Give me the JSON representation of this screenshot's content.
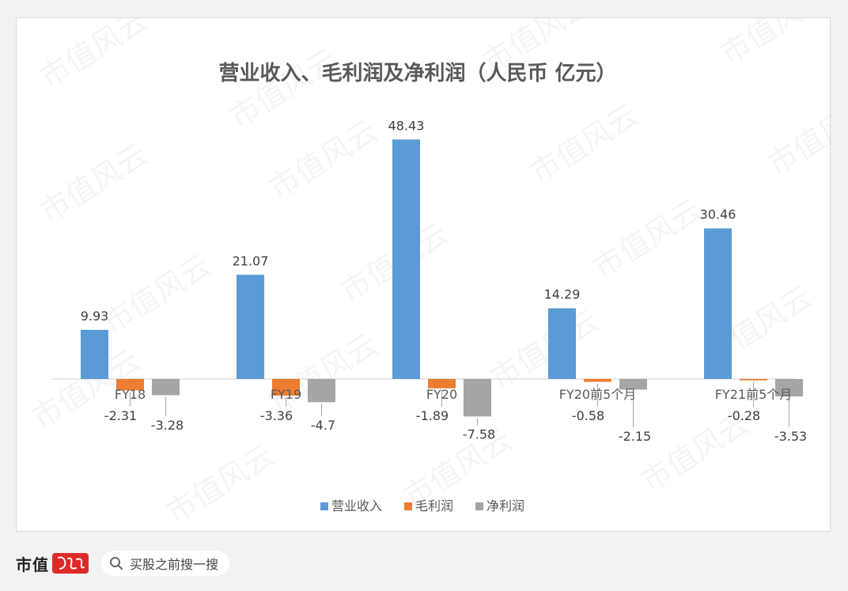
{
  "chart_data": {
    "type": "bar",
    "title": "营业收入、毛利润及净利润（人民币 亿元）",
    "categories": [
      "FY18",
      "FY19",
      "FY20",
      "FY20前5个月",
      "FY21前5个月"
    ],
    "series": [
      {
        "name": "营业收入",
        "color": "#5b9bd5",
        "values": [
          9.93,
          21.07,
          48.43,
          14.29,
          30.46
        ],
        "labels": [
          "9.93",
          "21.07",
          "48.43",
          "14.29",
          "30.46"
        ]
      },
      {
        "name": "毛利润",
        "color": "#ed7d31",
        "values": [
          -2.31,
          -3.36,
          -1.89,
          -0.58,
          -0.28
        ],
        "labels": [
          "-2.31",
          "-3.36",
          "-1.89",
          "-0.58",
          "-0.28"
        ]
      },
      {
        "name": "净利润",
        "color": "#a5a5a5",
        "values": [
          -3.28,
          -4.7,
          -7.58,
          -2.15,
          -3.53
        ],
        "labels": [
          "-3.28",
          "-4.7",
          "-7.58",
          "-2.15",
          "-3.53"
        ]
      }
    ],
    "ylim": [
      -10,
      60
    ],
    "grid": false,
    "legend": "bottom"
  },
  "watermark": "市值风云",
  "footer": {
    "brand": "市值",
    "search_text": "买股之前搜一搜"
  }
}
